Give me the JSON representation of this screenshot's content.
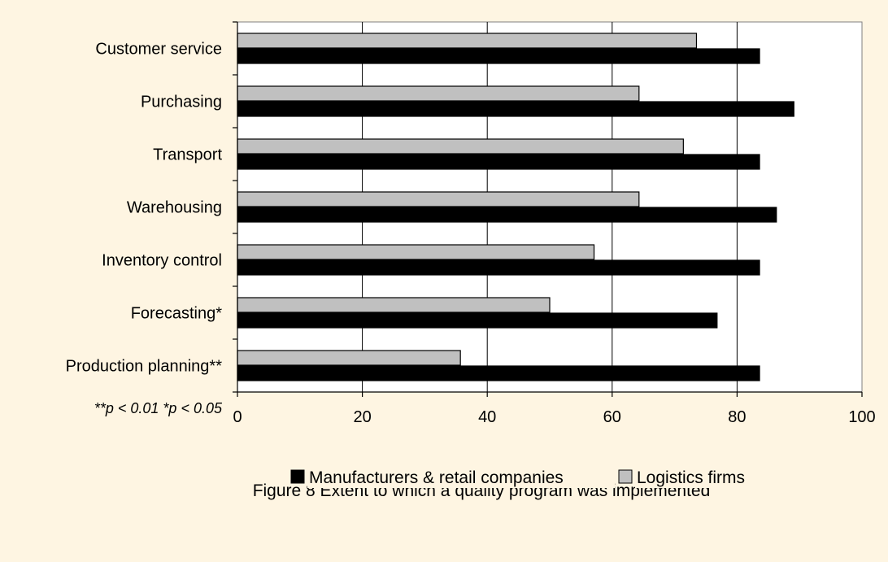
{
  "chart_data": {
    "type": "bar",
    "orientation": "horizontal",
    "categories": [
      "Customer service",
      "Purchasing",
      "Transport",
      "Warehousing",
      "Inventory control",
      "Forecasting*",
      "Production planning**"
    ],
    "series": [
      {
        "name": "Logistics firms",
        "color": "#C0C0C0",
        "values": [
          73.5,
          64.3,
          71.4,
          64.3,
          57.1,
          50.0,
          35.7
        ]
      },
      {
        "name": "Manufacturers & retail companies",
        "color": "#000000",
        "values": [
          83.6,
          89.1,
          83.6,
          86.3,
          83.6,
          76.8,
          83.6
        ]
      }
    ],
    "xlim": [
      0,
      100
    ],
    "xticks": [
      "0",
      "20",
      "40",
      "60",
      "80",
      "100"
    ],
    "grid": "vertical",
    "legend": {
      "position": "bottom",
      "entries": [
        "Manufacturers & retail companies",
        "Logistics firms"
      ]
    },
    "note": "**p < 0.01 *p < 0.05",
    "caption": "Figure 8 Extent to which a quality program was implemented"
  }
}
